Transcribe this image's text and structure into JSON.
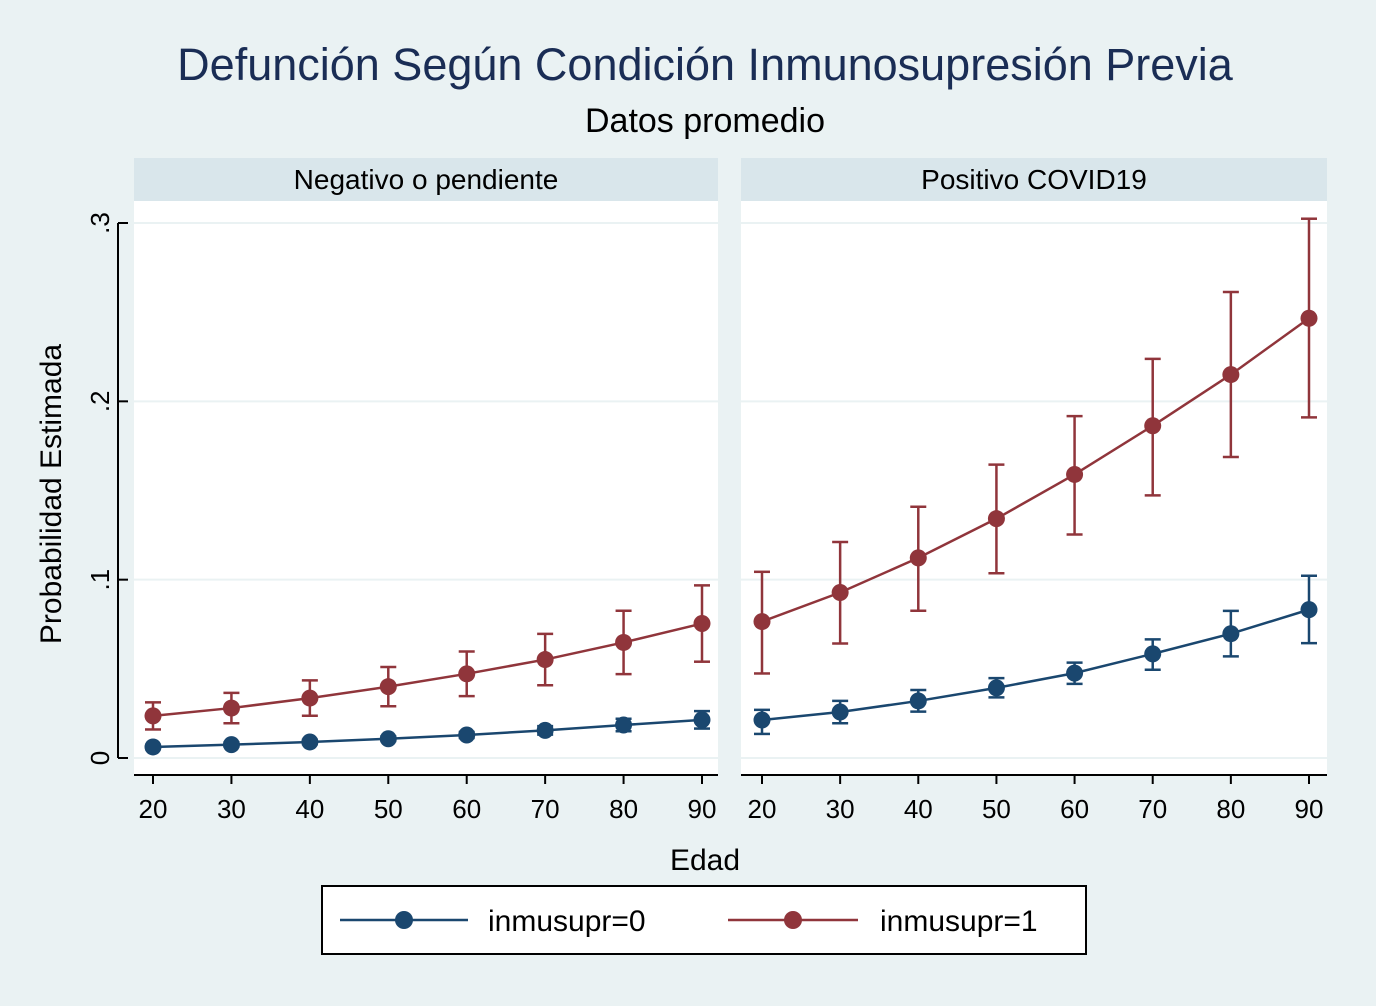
{
  "chart_data": {
    "type": "line",
    "title": "Defunción Según Condición Inmunosupresión Previa",
    "subtitle": "Datos promedio",
    "xlabel": "Edad",
    "ylabel": "Probabilidad Estimada",
    "x": [
      20,
      30,
      40,
      50,
      60,
      70,
      80,
      90
    ],
    "x_ticks": [
      "20",
      "30",
      "40",
      "50",
      "60",
      "70",
      "80",
      "90"
    ],
    "ylim": [
      0,
      0.3
    ],
    "y_ticks": [
      {
        "value": 0,
        "label": "0"
      },
      {
        "value": 0.1,
        "label": ".1"
      },
      {
        "value": 0.2,
        "label": ".2"
      },
      {
        "value": 0.3,
        "label": ".3"
      }
    ],
    "grid": true,
    "legend_position": "bottom",
    "colors": {
      "series0": "#1a476f",
      "series1": "#90353b"
    },
    "panels": [
      {
        "title": "Negativo o pendiente",
        "series": [
          {
            "name": "inmusupr=0",
            "values": [
              0.0062,
              0.0075,
              0.009,
              0.0108,
              0.0129,
              0.0155,
              0.0185,
              0.0214
            ],
            "ci_low": [
              0.005,
              0.0063,
              0.0078,
              0.0095,
              0.0112,
              0.0131,
              0.015,
              0.0165
            ],
            "ci_high": [
              0.0074,
              0.0088,
              0.0102,
              0.0121,
              0.0146,
              0.0179,
              0.022,
              0.0263
            ]
          },
          {
            "name": "inmusupr=1",
            "values": [
              0.0236,
              0.028,
              0.0336,
              0.04,
              0.0472,
              0.0552,
              0.0648,
              0.0754
            ],
            "ci_low": [
              0.016,
              0.0195,
              0.0237,
              0.029,
              0.0347,
              0.0408,
              0.047,
              0.054
            ],
            "ci_high": [
              0.0312,
              0.0365,
              0.0435,
              0.051,
              0.0597,
              0.0696,
              0.0826,
              0.0968
            ]
          }
        ]
      },
      {
        "title": "Positivo COVID19",
        "series": [
          {
            "name": "inmusupr=0",
            "values": [
              0.0213,
              0.0258,
              0.032,
              0.0393,
              0.0476,
              0.0584,
              0.0697,
              0.0832
            ],
            "ci_low": [
              0.0135,
              0.0195,
              0.026,
              0.034,
              0.0416,
              0.0495,
              0.057,
              0.0644
            ],
            "ci_high": [
              0.027,
              0.032,
              0.0381,
              0.0448,
              0.0535,
              0.0665,
              0.0825,
              0.1022
            ]
          },
          {
            "name": "inmusupr=1",
            "values": [
              0.0765,
              0.0928,
              0.1122,
              0.1342,
              0.159,
              0.1863,
              0.215,
              0.2466
            ],
            "ci_low": [
              0.0474,
              0.0642,
              0.0826,
              0.1036,
              0.1253,
              0.1473,
              0.1688,
              0.191
            ],
            "ci_high": [
              0.1044,
              0.1211,
              0.1409,
              0.1645,
              0.1917,
              0.2238,
              0.2613,
              0.3024
            ]
          }
        ]
      }
    ],
    "legend": [
      {
        "label": "inmusupr=0",
        "color": "#1a476f"
      },
      {
        "label": "inmusupr=1",
        "color": "#90353b"
      }
    ]
  }
}
